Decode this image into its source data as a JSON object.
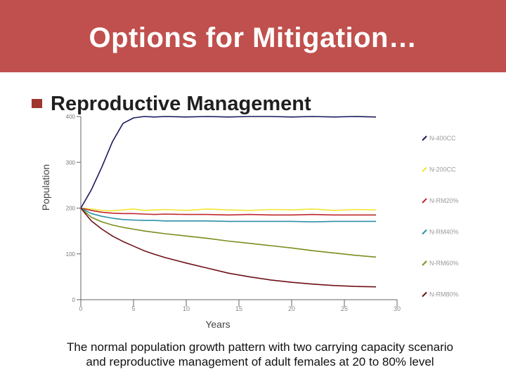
{
  "slide": {
    "title": "Options for Mitigation…",
    "bullet": "Reproductive Management",
    "caption_line1": "The normal population growth pattern with two carrying capacity scenario",
    "caption_line2": "and reproductive management of adult females at 20 to 80% level"
  },
  "chart_data": {
    "type": "line",
    "title": "",
    "xlabel": "Years",
    "ylabel": "Population",
    "xlim": [
      0,
      30
    ],
    "ylim": [
      0,
      400
    ],
    "xticks": [
      0,
      5,
      10,
      15,
      20,
      25,
      30
    ],
    "yticks": [
      0,
      100,
      200,
      300,
      400
    ],
    "grid": false,
    "legend_position": "right",
    "x": [
      0,
      1,
      2,
      3,
      4,
      5,
      6,
      7,
      8,
      10,
      12,
      14,
      16,
      18,
      20,
      22,
      24,
      26,
      28
    ],
    "series": [
      {
        "name": "N-400CC",
        "color": "#1a1a5c",
        "values": [
          200,
          240,
          290,
          345,
          385,
          397,
          400,
          399,
          400,
          399,
          400,
          399,
          400,
          400,
          399,
          400,
          399,
          400,
          399
        ]
      },
      {
        "name": "N-200CC",
        "color": "#f2e634",
        "values": [
          200,
          198,
          195,
          194,
          196,
          198,
          195,
          196,
          197,
          195,
          198,
          196,
          195,
          197,
          196,
          198,
          195,
          197,
          196
        ]
      },
      {
        "name": "N-RM20%",
        "color": "#c0282d",
        "values": [
          200,
          195,
          191,
          189,
          188,
          188,
          187,
          186,
          187,
          186,
          186,
          185,
          186,
          185,
          185,
          186,
          185,
          185,
          185
        ]
      },
      {
        "name": "N-RM40%",
        "color": "#2e8fa8",
        "values": [
          200,
          188,
          182,
          178,
          175,
          174,
          173,
          173,
          172,
          172,
          172,
          171,
          171,
          171,
          171,
          170,
          171,
          171,
          171
        ]
      },
      {
        "name": "N-RM60%",
        "color": "#7d8c1e",
        "values": [
          200,
          180,
          170,
          163,
          158,
          154,
          150,
          147,
          144,
          139,
          134,
          128,
          123,
          118,
          113,
          107,
          102,
          97,
          93
        ]
      },
      {
        "name": "N-RM80%",
        "color": "#6e1018",
        "values": [
          200,
          172,
          154,
          139,
          127,
          117,
          107,
          99,
          92,
          80,
          69,
          58,
          50,
          43,
          38,
          34,
          31,
          29,
          28
        ]
      }
    ]
  }
}
